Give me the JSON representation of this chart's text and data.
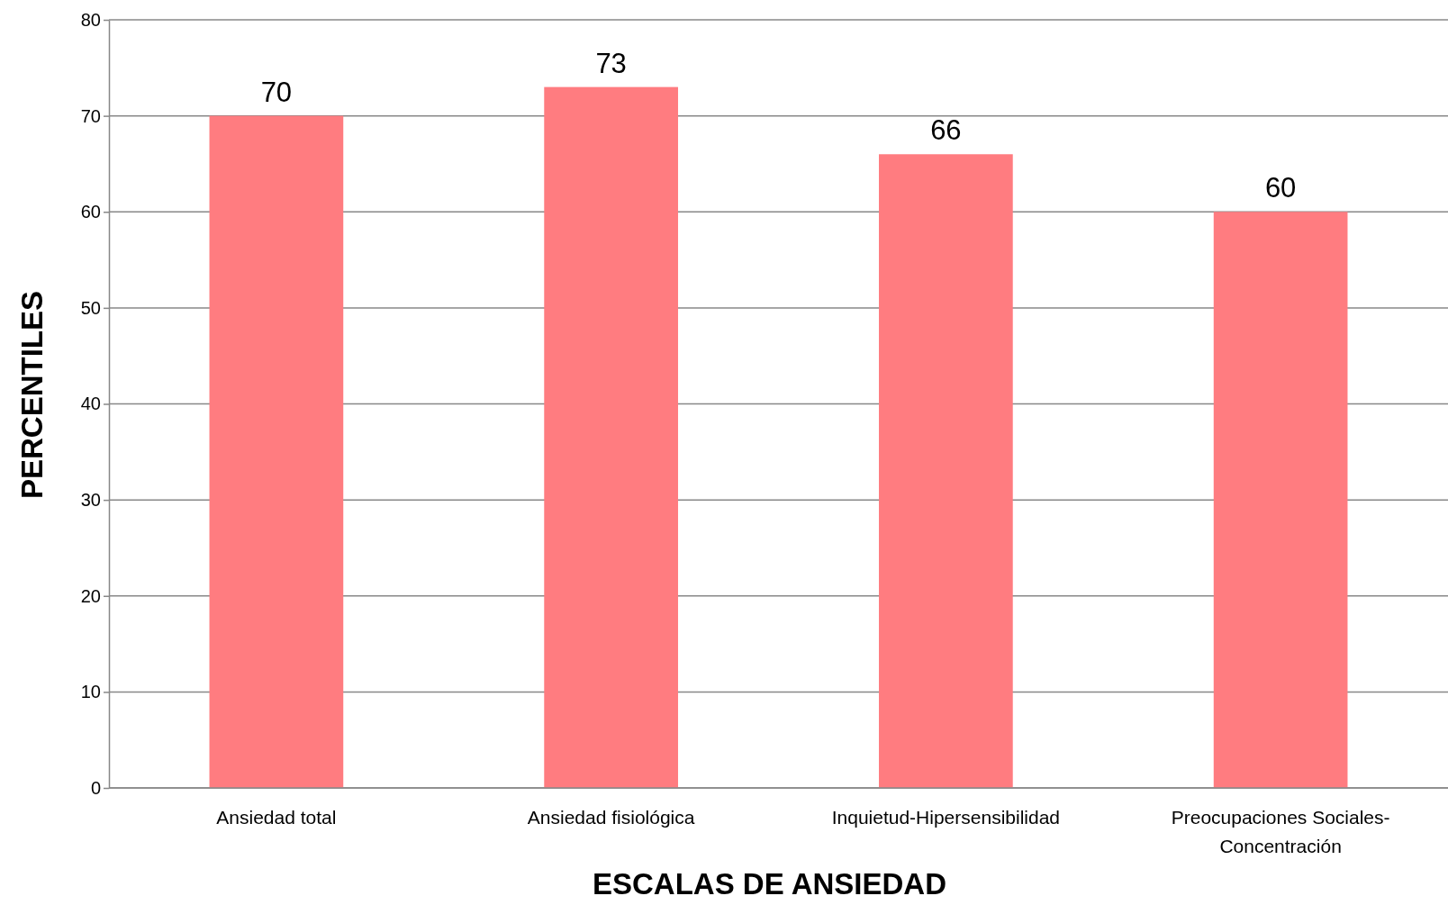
{
  "chart_data": {
    "type": "bar",
    "xlabel": "ESCALAS DE ANSIEDAD",
    "ylabel": "PERCENTILES",
    "categories": [
      "Ansiedad total",
      "Ansiedad fisiológica",
      "Inquietud-Hipersensibilidad",
      "Preocupaciones Sociales-Concentración"
    ],
    "values": [
      70,
      73,
      66,
      60
    ],
    "color": "#ff7c80",
    "ylim": [
      0,
      80
    ],
    "yticks": [
      0,
      10,
      20,
      30,
      40,
      50,
      60,
      70,
      80
    ],
    "grid": "y",
    "data_labels": true
  }
}
